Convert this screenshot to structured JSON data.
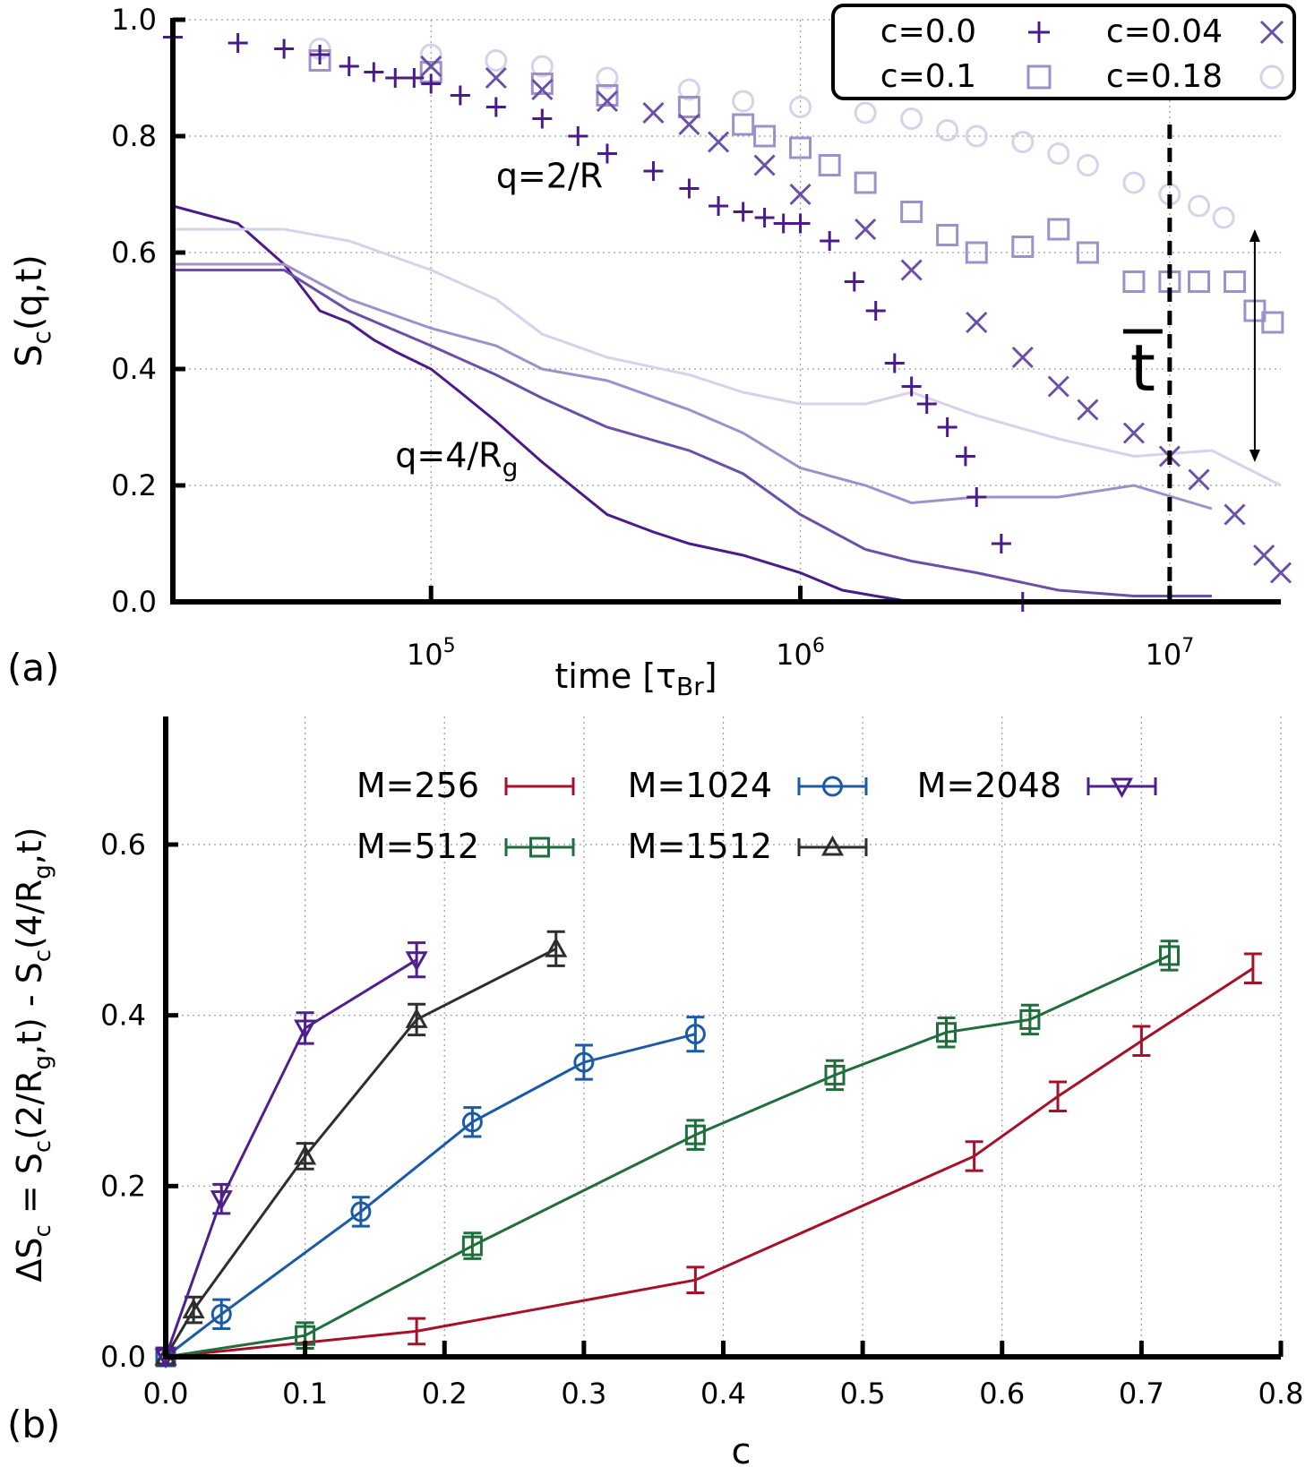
{
  "chart_data": [
    {
      "panel": "(a)",
      "type": "scatter",
      "xlabel": "time [τ",
      "xlabel_sub": "Br",
      "xlabel_close": "]",
      "ylabel": "S",
      "ylabel_sub": "c",
      "ylabel_tail": "(q,t)",
      "xscale": "log",
      "xlim": [
        20000,
        20000000
      ],
      "ylim": [
        0.0,
        1.0
      ],
      "xticks": [
        {
          "value": 100000,
          "base": "10",
          "exp": "5"
        },
        {
          "value": 1000000,
          "base": "10",
          "exp": "6"
        },
        {
          "value": 10000000,
          "base": "10",
          "exp": "7"
        }
      ],
      "yticks": [
        {
          "value": 0.0,
          "label": "0.0"
        },
        {
          "value": 0.2,
          "label": "0.2"
        },
        {
          "value": 0.4,
          "label": "0.4"
        },
        {
          "value": 0.6,
          "label": "0.6"
        },
        {
          "value": 0.8,
          "label": "0.8"
        },
        {
          "value": 1.0,
          "label": "1.0"
        }
      ],
      "grid": true,
      "legend_position": "top-right",
      "annotations": {
        "q_high": {
          "text": "q=2/R",
          "x": 150000,
          "y": 0.73
        },
        "q_low": {
          "text": "q=4/R",
          "sub": "g",
          "x": 80000,
          "y": 0.25
        },
        "tbar": {
          "text": "t",
          "x": 9000000,
          "y": 0.4,
          "line_x": 10000000
        },
        "arrow": {
          "x": 17000000,
          "y_top": 0.64,
          "y_bottom": 0.24
        }
      },
      "series": [
        {
          "name": "c=0.0",
          "color": "#4b1b8a",
          "marker": "plus",
          "x": [
            20000,
            30000,
            40000,
            50000,
            60000,
            70000,
            80000,
            90000,
            100000,
            120000,
            150000,
            200000,
            250000,
            300000,
            400000,
            500000,
            600000,
            700000,
            800000,
            900000,
            1000000,
            1200000,
            1400000,
            1600000,
            1800000,
            2000000,
            2200000,
            2500000,
            2800000,
            3000000,
            3500000,
            4000000
          ],
          "y": [
            0.97,
            0.96,
            0.95,
            0.94,
            0.92,
            0.91,
            0.9,
            0.9,
            0.89,
            0.87,
            0.85,
            0.83,
            0.8,
            0.77,
            0.74,
            0.71,
            0.68,
            0.67,
            0.66,
            0.65,
            0.65,
            0.62,
            0.55,
            0.5,
            0.41,
            0.37,
            0.34,
            0.3,
            0.25,
            0.18,
            0.1,
            0.0
          ]
        },
        {
          "name": "c=0.04",
          "color": "#6a50a8",
          "marker": "cross",
          "x": [
            100000,
            150000,
            200000,
            300000,
            400000,
            500000,
            600000,
            800000,
            1000000,
            1500000,
            2000000,
            3000000,
            4000000,
            5000000,
            6000000,
            8000000,
            10000000,
            12000000,
            15000000,
            18000000,
            20000000
          ],
          "y": [
            0.92,
            0.9,
            0.88,
            0.86,
            0.84,
            0.82,
            0.79,
            0.75,
            0.7,
            0.64,
            0.57,
            0.48,
            0.42,
            0.37,
            0.33,
            0.29,
            0.25,
            0.21,
            0.15,
            0.08,
            0.05
          ]
        },
        {
          "name": "c=0.1",
          "color": "#9c91c9",
          "marker": "square",
          "x": [
            50000,
            100000,
            200000,
            300000,
            500000,
            700000,
            800000,
            1000000,
            1200000,
            1500000,
            2000000,
            2500000,
            3000000,
            4000000,
            5000000,
            6000000,
            8000000,
            10000000,
            12000000,
            15000000,
            17000000,
            19000000
          ],
          "y": [
            0.93,
            0.91,
            0.89,
            0.87,
            0.85,
            0.82,
            0.8,
            0.78,
            0.75,
            0.72,
            0.67,
            0.63,
            0.6,
            0.61,
            0.64,
            0.6,
            0.55,
            0.55,
            0.55,
            0.55,
            0.5,
            0.48
          ]
        },
        {
          "name": "c=0.18",
          "color": "#d6d2ea",
          "marker": "circle",
          "x": [
            50000,
            100000,
            150000,
            200000,
            300000,
            500000,
            700000,
            1000000,
            1500000,
            2000000,
            2500000,
            3000000,
            4000000,
            5000000,
            6000000,
            8000000,
            10000000,
            12000000,
            14000000
          ],
          "y": [
            0.95,
            0.94,
            0.93,
            0.92,
            0.9,
            0.88,
            0.86,
            0.85,
            0.84,
            0.83,
            0.81,
            0.8,
            0.79,
            0.77,
            0.75,
            0.72,
            0.7,
            0.68,
            0.66
          ]
        },
        {
          "name": "",
          "color": "#4b1b8a",
          "marker": "line",
          "x": [
            20000,
            30000,
            40000,
            50000,
            60000,
            70000,
            80000,
            100000,
            120000,
            150000,
            200000,
            300000,
            400000,
            500000,
            700000,
            1000000,
            1300000,
            1600000,
            2000000,
            3000000,
            5000000
          ],
          "y": [
            0.68,
            0.65,
            0.58,
            0.5,
            0.48,
            0.45,
            0.43,
            0.4,
            0.36,
            0.31,
            0.24,
            0.15,
            0.12,
            0.1,
            0.08,
            0.05,
            0.02,
            0.01,
            0.0,
            0.0,
            0.0
          ]
        },
        {
          "name": "",
          "color": "#6a50a8",
          "marker": "line",
          "x": [
            20000,
            40000,
            60000,
            100000,
            150000,
            200000,
            300000,
            500000,
            700000,
            1000000,
            1500000,
            2000000,
            3000000,
            5000000,
            8000000,
            13000000
          ],
          "y": [
            0.57,
            0.57,
            0.5,
            0.44,
            0.39,
            0.35,
            0.3,
            0.26,
            0.22,
            0.15,
            0.09,
            0.07,
            0.05,
            0.02,
            0.01,
            0.01
          ]
        },
        {
          "name": "",
          "color": "#9c91c9",
          "marker": "line",
          "x": [
            20000,
            40000,
            60000,
            100000,
            150000,
            200000,
            300000,
            500000,
            700000,
            1000000,
            1500000,
            2000000,
            3000000,
            5000000,
            8000000,
            13000000
          ],
          "y": [
            0.58,
            0.58,
            0.52,
            0.47,
            0.44,
            0.4,
            0.38,
            0.33,
            0.29,
            0.23,
            0.2,
            0.17,
            0.18,
            0.18,
            0.2,
            0.16
          ]
        },
        {
          "name": "",
          "color": "#d6d2ea",
          "marker": "line",
          "x": [
            20000,
            40000,
            60000,
            100000,
            150000,
            200000,
            300000,
            500000,
            700000,
            1000000,
            1500000,
            2000000,
            3000000,
            5000000,
            8000000,
            13000000,
            20000000
          ],
          "y": [
            0.64,
            0.64,
            0.62,
            0.57,
            0.52,
            0.46,
            0.42,
            0.39,
            0.36,
            0.34,
            0.34,
            0.36,
            0.32,
            0.28,
            0.25,
            0.26,
            0.2
          ]
        }
      ]
    },
    {
      "panel": "(b)",
      "type": "line",
      "xlabel": "c",
      "ylabel": "ΔS",
      "ylabel_rest": "c = Sc(2/Rg,t) - Sc(4/Rg,t)",
      "xlim": [
        0.0,
        0.8
      ],
      "ylim": [
        0.0,
        0.75
      ],
      "xticks": [
        {
          "value": 0.0,
          "label": "0.0"
        },
        {
          "value": 0.1,
          "label": "0.1"
        },
        {
          "value": 0.2,
          "label": "0.2"
        },
        {
          "value": 0.3,
          "label": "0.3"
        },
        {
          "value": 0.4,
          "label": "0.4"
        },
        {
          "value": 0.5,
          "label": "0.5"
        },
        {
          "value": 0.6,
          "label": "0.6"
        },
        {
          "value": 0.7,
          "label": "0.7"
        },
        {
          "value": 0.8,
          "label": "0.8"
        }
      ],
      "yticks": [
        {
          "value": 0.0,
          "label": "0.0"
        },
        {
          "value": 0.2,
          "label": "0.2"
        },
        {
          "value": 0.4,
          "label": "0.4"
        },
        {
          "value": 0.6,
          "label": "0.6"
        }
      ],
      "grid": true,
      "legend_position": "top",
      "series": [
        {
          "name": "M=256",
          "color": "#a8102a",
          "marker": "none",
          "x": [
            0.0,
            0.18,
            0.38,
            0.58,
            0.64,
            0.7,
            0.78
          ],
          "y": [
            0.0,
            0.03,
            0.09,
            0.235,
            0.305,
            0.37,
            0.455
          ],
          "err": [
            0.01,
            0.015,
            0.015,
            0.017,
            0.017,
            0.017,
            0.017
          ]
        },
        {
          "name": "M=512",
          "color": "#1f6e3c",
          "marker": "square",
          "x": [
            0.0,
            0.1,
            0.22,
            0.38,
            0.48,
            0.56,
            0.62,
            0.72
          ],
          "y": [
            0.0,
            0.025,
            0.13,
            0.26,
            0.33,
            0.38,
            0.395,
            0.47
          ],
          "err": [
            0.01,
            0.015,
            0.015,
            0.017,
            0.017,
            0.017,
            0.017,
            0.017
          ]
        },
        {
          "name": "M=1024",
          "color": "#1b5aa6",
          "marker": "circle",
          "x": [
            0.0,
            0.04,
            0.14,
            0.22,
            0.3,
            0.38
          ],
          "y": [
            0.0,
            0.05,
            0.17,
            0.275,
            0.345,
            0.378
          ],
          "err": [
            0.01,
            0.017,
            0.017,
            0.017,
            0.02,
            0.02
          ]
        },
        {
          "name": "M=1512",
          "color": "#2e2e2e",
          "marker": "triangle-up",
          "x": [
            0.0,
            0.02,
            0.1,
            0.18,
            0.28
          ],
          "y": [
            0.0,
            0.055,
            0.235,
            0.395,
            0.478
          ],
          "err": [
            0.01,
            0.015,
            0.015,
            0.018,
            0.02
          ]
        },
        {
          "name": "M=2048",
          "color": "#4f1f8f",
          "marker": "triangle-down",
          "x": [
            0.0,
            0.04,
            0.1,
            0.18
          ],
          "y": [
            0.0,
            0.185,
            0.385,
            0.465
          ],
          "err": [
            0.01,
            0.017,
            0.018,
            0.02
          ]
        }
      ]
    }
  ]
}
